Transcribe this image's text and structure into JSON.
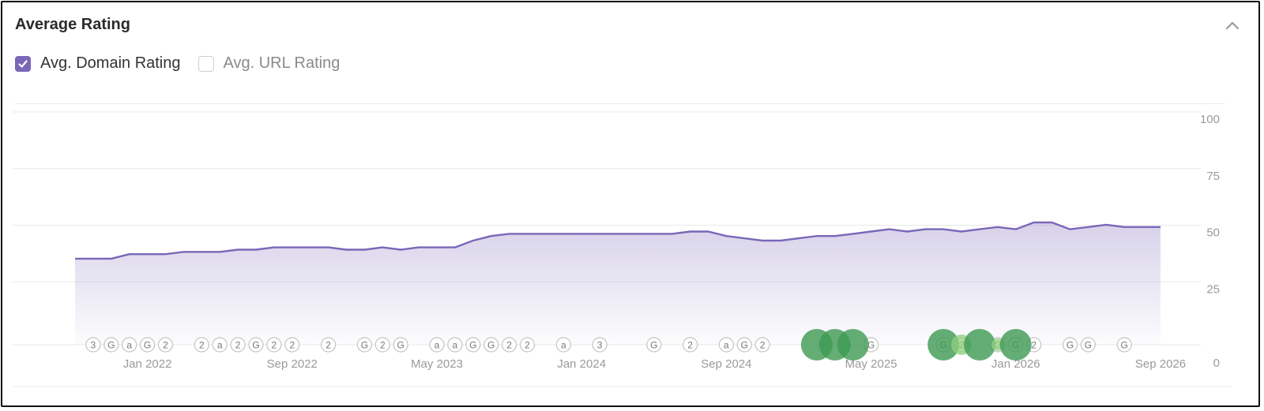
{
  "card": {
    "title": "Average Rating"
  },
  "legend": [
    {
      "label": "Avg. Domain Rating",
      "checked": true
    },
    {
      "label": "Avg. URL Rating",
      "checked": false
    }
  ],
  "colors": {
    "line": "#7a67b8",
    "area": "#7a67b8",
    "grid": "#e9e9e9",
    "marker_border": "#c4c4c4",
    "bubble_dark": "#3d9a52",
    "bubble_light": "#8fd07e"
  },
  "chart_data": {
    "type": "area",
    "series": [
      {
        "name": "Avg. Domain Rating",
        "x": [
          "2021-09",
          "2021-10",
          "2021-11",
          "2021-12",
          "2022-01",
          "2022-02",
          "2022-03",
          "2022-04",
          "2022-05",
          "2022-06",
          "2022-07",
          "2022-08",
          "2022-09",
          "2022-10",
          "2022-11",
          "2022-12",
          "2023-01",
          "2023-02",
          "2023-03",
          "2023-04",
          "2023-05",
          "2023-06",
          "2023-07",
          "2023-08",
          "2023-09",
          "2023-10",
          "2023-11",
          "2023-12",
          "2024-01",
          "2024-02",
          "2024-03",
          "2024-04",
          "2024-05",
          "2024-06",
          "2024-07",
          "2024-08",
          "2024-09",
          "2024-10",
          "2024-11",
          "2024-12",
          "2025-01",
          "2025-02",
          "2025-03",
          "2025-04",
          "2025-05",
          "2025-06",
          "2025-07",
          "2025-08",
          "2025-09",
          "2025-10",
          "2025-11",
          "2025-12",
          "2026-01",
          "2026-02",
          "2026-03",
          "2026-04",
          "2026-05",
          "2026-06",
          "2026-07",
          "2026-08",
          "2026-09"
        ],
        "values": [
          38,
          38,
          38,
          40,
          40,
          40,
          41,
          41,
          41,
          42,
          42,
          43,
          43,
          43,
          43,
          42,
          42,
          43,
          42,
          43,
          43,
          43,
          46,
          48,
          49,
          49,
          49,
          49,
          49,
          49,
          49,
          49,
          49,
          49,
          50,
          50,
          48,
          47,
          46,
          46,
          47,
          48,
          48,
          49,
          50,
          51,
          50,
          51,
          51,
          50,
          51,
          52,
          51,
          54,
          54,
          51,
          52,
          53,
          52,
          52,
          52
        ]
      }
    ],
    "x_ticks": [
      "Jan 2022",
      "Sep 2022",
      "May 2023",
      "Jan 2024",
      "Sep 2024",
      "May 2025",
      "Jan 2026",
      "Sep 2026"
    ],
    "y_ticks": [
      0,
      25,
      50,
      75,
      100
    ],
    "ylim": [
      0,
      100
    ],
    "grid": true,
    "annotations": [
      {
        "x": "2021-10",
        "label": "3"
      },
      {
        "x": "2021-11",
        "label": "G"
      },
      {
        "x": "2021-12",
        "label": "a"
      },
      {
        "x": "2022-01",
        "label": "G"
      },
      {
        "x": "2022-02",
        "label": "2"
      },
      {
        "x": "2022-04",
        "label": "2"
      },
      {
        "x": "2022-05",
        "label": "a"
      },
      {
        "x": "2022-06",
        "label": "2"
      },
      {
        "x": "2022-07",
        "label": "G"
      },
      {
        "x": "2022-08",
        "label": "2"
      },
      {
        "x": "2022-09",
        "label": "2"
      },
      {
        "x": "2022-11",
        "label": "2"
      },
      {
        "x": "2023-01",
        "label": "G"
      },
      {
        "x": "2023-02",
        "label": "2"
      },
      {
        "x": "2023-03",
        "label": "G"
      },
      {
        "x": "2023-05",
        "label": "a"
      },
      {
        "x": "2023-06",
        "label": "a"
      },
      {
        "x": "2023-07",
        "label": "G"
      },
      {
        "x": "2023-08",
        "label": "G"
      },
      {
        "x": "2023-09",
        "label": "2"
      },
      {
        "x": "2023-10",
        "label": "2"
      },
      {
        "x": "2023-12",
        "label": "a"
      },
      {
        "x": "2024-02",
        "label": "3"
      },
      {
        "x": "2024-05",
        "label": "G"
      },
      {
        "x": "2024-07",
        "label": "2"
      },
      {
        "x": "2024-09",
        "label": "a"
      },
      {
        "x": "2024-10",
        "label": "G"
      },
      {
        "x": "2024-11",
        "label": "2"
      },
      {
        "x": "2025-05",
        "label": "G"
      },
      {
        "x": "2025-09",
        "label": "G"
      },
      {
        "x": "2025-10",
        "label": "2"
      },
      {
        "x": "2025-12",
        "label": "G"
      },
      {
        "x": "2026-01",
        "label": "G"
      },
      {
        "x": "2026-02",
        "label": "2"
      },
      {
        "x": "2026-04",
        "label": "G"
      },
      {
        "x": "2026-05",
        "label": "G"
      },
      {
        "x": "2026-07",
        "label": "G"
      }
    ],
    "bubbles": [
      {
        "x": "2025-02",
        "size": "large",
        "tone": "dark"
      },
      {
        "x": "2025-03",
        "size": "large",
        "tone": "dark"
      },
      {
        "x": "2025-04",
        "size": "large",
        "tone": "dark"
      },
      {
        "x": "2025-09",
        "size": "large",
        "tone": "dark"
      },
      {
        "x": "2025-10",
        "size": "medium",
        "tone": "light"
      },
      {
        "x": "2025-11",
        "size": "large",
        "tone": "dark"
      },
      {
        "x": "2025-12",
        "size": "small",
        "tone": "light"
      },
      {
        "x": "2026-01",
        "size": "large",
        "tone": "dark"
      }
    ]
  }
}
